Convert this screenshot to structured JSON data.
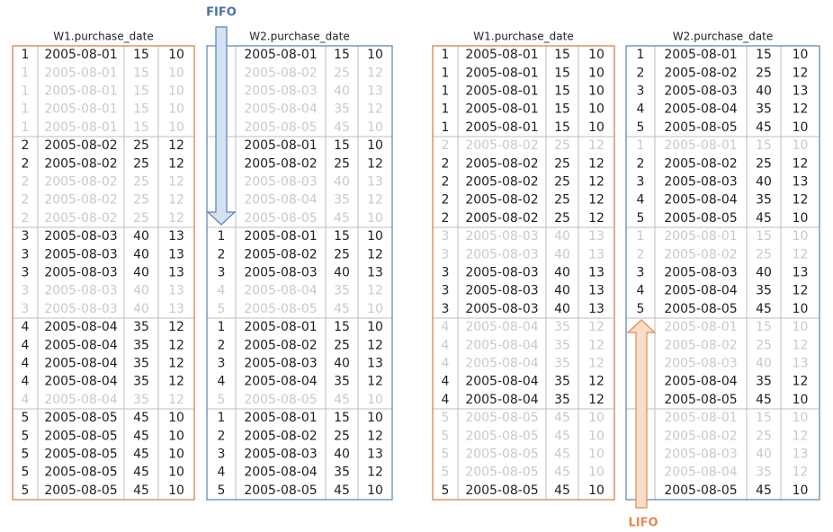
{
  "labels": {
    "fifo": "FIFO",
    "lifo": "LIFO"
  },
  "tables": [
    {
      "header": "W1.purchase_date",
      "border": "#d07a3f",
      "faded_rows": [
        1,
        2,
        3,
        4,
        7,
        8,
        9,
        13,
        14,
        19
      ],
      "rows": [
        [
          1,
          "2005-08-01",
          15,
          10
        ],
        [
          1,
          "2005-08-01",
          15,
          10
        ],
        [
          1,
          "2005-08-01",
          15,
          10
        ],
        [
          1,
          "2005-08-01",
          15,
          10
        ],
        [
          1,
          "2005-08-01",
          15,
          10
        ],
        [
          2,
          "2005-08-02",
          25,
          12
        ],
        [
          2,
          "2005-08-02",
          25,
          12
        ],
        [
          2,
          "2005-08-02",
          25,
          12
        ],
        [
          2,
          "2005-08-02",
          25,
          12
        ],
        [
          2,
          "2005-08-02",
          25,
          12
        ],
        [
          3,
          "2005-08-03",
          40,
          13
        ],
        [
          3,
          "2005-08-03",
          40,
          13
        ],
        [
          3,
          "2005-08-03",
          40,
          13
        ],
        [
          3,
          "2005-08-03",
          40,
          13
        ],
        [
          3,
          "2005-08-03",
          40,
          13
        ],
        [
          4,
          "2005-08-04",
          35,
          12
        ],
        [
          4,
          "2005-08-04",
          35,
          12
        ],
        [
          4,
          "2005-08-04",
          35,
          12
        ],
        [
          4,
          "2005-08-04",
          35,
          12
        ],
        [
          4,
          "2005-08-04",
          35,
          12
        ],
        [
          5,
          "2005-08-05",
          45,
          10
        ],
        [
          5,
          "2005-08-05",
          45,
          10
        ],
        [
          5,
          "2005-08-05",
          45,
          10
        ],
        [
          5,
          "2005-08-05",
          45,
          10
        ],
        [
          5,
          "2005-08-05",
          45,
          10
        ]
      ]
    },
    {
      "header": "W2.purchase_date",
      "border": "#5a7fb0",
      "faded_rows": [
        1,
        2,
        3,
        4,
        7,
        8,
        9,
        13,
        14,
        19
      ],
      "rows": [
        [
          null,
          "2005-08-01",
          15,
          10
        ],
        [
          null,
          "2005-08-02",
          25,
          12
        ],
        [
          null,
          "2005-08-03",
          40,
          13
        ],
        [
          null,
          "2005-08-04",
          35,
          12
        ],
        [
          null,
          "2005-08-05",
          45,
          10
        ],
        [
          null,
          "2005-08-01",
          15,
          10
        ],
        [
          null,
          "2005-08-02",
          25,
          12
        ],
        [
          null,
          "2005-08-03",
          40,
          13
        ],
        [
          null,
          "2005-08-04",
          35,
          12
        ],
        [
          null,
          "2005-08-05",
          45,
          10
        ],
        [
          1,
          "2005-08-01",
          15,
          10
        ],
        [
          2,
          "2005-08-02",
          25,
          12
        ],
        [
          3,
          "2005-08-03",
          40,
          13
        ],
        [
          4,
          "2005-08-04",
          35,
          12
        ],
        [
          5,
          "2005-08-05",
          45,
          10
        ],
        [
          1,
          "2005-08-01",
          15,
          10
        ],
        [
          2,
          "2005-08-02",
          25,
          12
        ],
        [
          3,
          "2005-08-03",
          40,
          13
        ],
        [
          4,
          "2005-08-04",
          35,
          12
        ],
        [
          5,
          "2005-08-05",
          45,
          10
        ],
        [
          1,
          "2005-08-01",
          15,
          10
        ],
        [
          2,
          "2005-08-02",
          25,
          12
        ],
        [
          3,
          "2005-08-03",
          40,
          13
        ],
        [
          4,
          "2005-08-04",
          35,
          12
        ],
        [
          5,
          "2005-08-05",
          45,
          10
        ]
      ]
    },
    {
      "header": "W1.purchase_date",
      "border": "#d07a3f",
      "faded_rows": [
        5,
        10,
        11,
        15,
        16,
        17,
        20,
        21,
        22,
        23
      ],
      "rows": [
        [
          1,
          "2005-08-01",
          15,
          10
        ],
        [
          1,
          "2005-08-01",
          15,
          10
        ],
        [
          1,
          "2005-08-01",
          15,
          10
        ],
        [
          1,
          "2005-08-01",
          15,
          10
        ],
        [
          1,
          "2005-08-01",
          15,
          10
        ],
        [
          2,
          "2005-08-02",
          25,
          12
        ],
        [
          2,
          "2005-08-02",
          25,
          12
        ],
        [
          2,
          "2005-08-02",
          25,
          12
        ],
        [
          2,
          "2005-08-02",
          25,
          12
        ],
        [
          2,
          "2005-08-02",
          25,
          12
        ],
        [
          3,
          "2005-08-03",
          40,
          13
        ],
        [
          3,
          "2005-08-03",
          40,
          13
        ],
        [
          3,
          "2005-08-03",
          40,
          13
        ],
        [
          3,
          "2005-08-03",
          40,
          13
        ],
        [
          3,
          "2005-08-03",
          40,
          13
        ],
        [
          4,
          "2005-08-04",
          35,
          12
        ],
        [
          4,
          "2005-08-04",
          35,
          12
        ],
        [
          4,
          "2005-08-04",
          35,
          12
        ],
        [
          4,
          "2005-08-04",
          35,
          12
        ],
        [
          4,
          "2005-08-04",
          35,
          12
        ],
        [
          5,
          "2005-08-05",
          45,
          10
        ],
        [
          5,
          "2005-08-05",
          45,
          10
        ],
        [
          5,
          "2005-08-05",
          45,
          10
        ],
        [
          5,
          "2005-08-05",
          45,
          10
        ],
        [
          5,
          "2005-08-05",
          45,
          10
        ]
      ]
    },
    {
      "header": "W2.purchase_date",
      "border": "#5a7fb0",
      "faded_rows": [
        5,
        10,
        11,
        15,
        16,
        17,
        20,
        21,
        22,
        23
      ],
      "rows": [
        [
          1,
          "2005-08-01",
          15,
          10
        ],
        [
          2,
          "2005-08-02",
          25,
          12
        ],
        [
          3,
          "2005-08-03",
          40,
          13
        ],
        [
          4,
          "2005-08-04",
          35,
          12
        ],
        [
          5,
          "2005-08-05",
          45,
          10
        ],
        [
          1,
          "2005-08-01",
          15,
          10
        ],
        [
          2,
          "2005-08-02",
          25,
          12
        ],
        [
          3,
          "2005-08-03",
          40,
          13
        ],
        [
          4,
          "2005-08-04",
          35,
          12
        ],
        [
          5,
          "2005-08-05",
          45,
          10
        ],
        [
          1,
          "2005-08-01",
          15,
          10
        ],
        [
          2,
          "2005-08-02",
          25,
          12
        ],
        [
          3,
          "2005-08-03",
          40,
          13
        ],
        [
          4,
          "2005-08-04",
          35,
          12
        ],
        [
          5,
          "2005-08-05",
          45,
          10
        ],
        [
          null,
          "2005-08-01",
          15,
          10
        ],
        [
          null,
          "2005-08-02",
          25,
          12
        ],
        [
          null,
          "2005-08-03",
          40,
          13
        ],
        [
          null,
          "2005-08-04",
          35,
          12
        ],
        [
          null,
          "2005-08-05",
          45,
          10
        ],
        [
          null,
          "2005-08-01",
          15,
          10
        ],
        [
          null,
          "2005-08-02",
          25,
          12
        ],
        [
          null,
          "2005-08-03",
          40,
          13
        ],
        [
          null,
          "2005-08-04",
          35,
          12
        ],
        [
          null,
          "2005-08-05",
          45,
          10
        ]
      ]
    }
  ]
}
